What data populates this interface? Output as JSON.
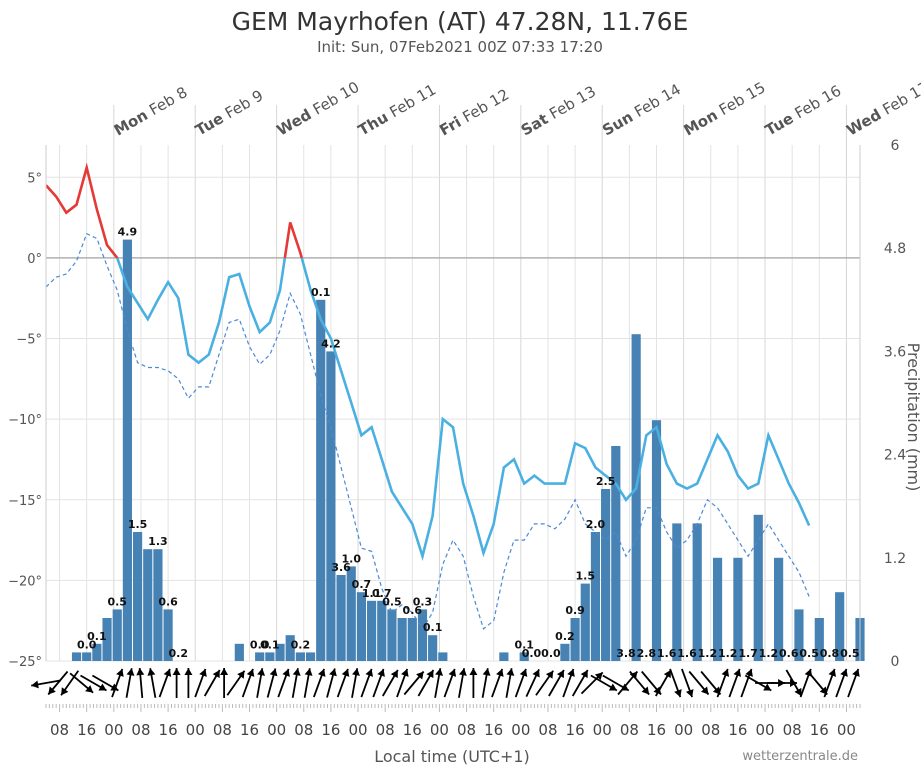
{
  "header": {
    "title": "GEM Mayrhofen (AT) 47.28N, 11.76E",
    "subtitle": "Init: Sun, 07Feb2021 00Z 07:33 17:20"
  },
  "credit": "wetterzentrale.de",
  "colors": {
    "bar": "#4682b4",
    "temp_line": "#4ab0e2",
    "temp_warm": "#e53935",
    "dewpoint": "#4a8ad6",
    "grid": "#e3e3e3",
    "zero_line": "#b0b0b0"
  },
  "chart_data": {
    "type": "bar+line",
    "title": "GEM Mayrhofen (AT) 47.28N, 11.76E",
    "subtitle": "Init: Sun, 07Feb2021 00Z 07:33 17:20",
    "xlabel": "Local time (UTC+1)",
    "ylabel_left": "",
    "ylabel_right": "Precipitation (mm)",
    "time_step_hours": 3,
    "start_hour_local": 4,
    "x_range_hours": [
      4,
      244
    ],
    "y_left": {
      "range": [
        -25,
        7
      ],
      "ticks": [
        5,
        0,
        -5,
        -10,
        -15,
        -20,
        -25
      ],
      "tick_labels": [
        "5°",
        "0°",
        "−5°",
        "−10°",
        "−15°",
        "−20°",
        "−25°"
      ]
    },
    "y_right": {
      "range": [
        0,
        6
      ],
      "ticks": [
        6,
        4.8,
        3.6,
        2.4,
        1.2,
        0
      ],
      "tick_labels": [
        "6",
        "4.8",
        "3.6",
        "2.4",
        "1.2",
        "0"
      ]
    },
    "day_labels": [
      {
        "dow": "Mon",
        "date": "Feb 8",
        "hour": 24
      },
      {
        "dow": "Tue",
        "date": "Feb 9",
        "hour": 48
      },
      {
        "dow": "Wed",
        "date": "Feb 10",
        "hour": 72
      },
      {
        "dow": "Thu",
        "date": "Feb 11",
        "hour": 96
      },
      {
        "dow": "Fri",
        "date": "Feb 12",
        "hour": 120
      },
      {
        "dow": "Sat",
        "date": "Feb 13",
        "hour": 144
      },
      {
        "dow": "Sun",
        "date": "Feb 14",
        "hour": 168
      },
      {
        "dow": "Mon",
        "date": "Feb 15",
        "hour": 192
      },
      {
        "dow": "Tue",
        "date": "Feb 16",
        "hour": 216
      },
      {
        "dow": "Wed",
        "date": "Feb 17",
        "hour": 240
      }
    ],
    "x_tick_labels": [
      "08",
      "16",
      "00",
      "08",
      "16",
      "00",
      "08",
      "16",
      "00",
      "08",
      "16",
      "00",
      "08",
      "16",
      "00",
      "08",
      "16",
      "00",
      "08",
      "16",
      "00",
      "08",
      "16",
      "00",
      "08",
      "16",
      "00",
      "08",
      "16",
      "00"
    ],
    "x_tick_hours": [
      8,
      16,
      24,
      32,
      40,
      48,
      56,
      64,
      72,
      80,
      88,
      96,
      104,
      112,
      120,
      128,
      136,
      144,
      152,
      160,
      168,
      176,
      184,
      192,
      200,
      208,
      216,
      224,
      232,
      240
    ],
    "precip_series": {
      "name": "Precipitation (mm)",
      "times": [
        10,
        13,
        16,
        19,
        22,
        25,
        28,
        31,
        34,
        37,
        40,
        61,
        64,
        67,
        70,
        73,
        76,
        79,
        82,
        85,
        88,
        91,
        94,
        97,
        100,
        103,
        106,
        109,
        112,
        115,
        118,
        121,
        136,
        139,
        145,
        148,
        151,
        154,
        157,
        160,
        163,
        166,
        169,
        172,
        175,
        178,
        181,
        184,
        187,
        190,
        193,
        196,
        199,
        202,
        205,
        208,
        211,
        214,
        217,
        220,
        223,
        226,
        229,
        232,
        235,
        238,
        241,
        244
      ],
      "values": [
        0.0,
        0.1,
        0.1,
        0.2,
        0.5,
        0.6,
        4.9,
        1.5,
        1.3,
        1.3,
        0.6,
        0.2,
        0.0,
        0.1,
        0.1,
        0.2,
        0.3,
        0.1,
        0.1,
        4.2,
        3.6,
        1.0,
        1.1,
        0.8,
        0.7,
        0.7,
        0.6,
        0.5,
        0.5,
        0.6,
        0.3,
        0.1,
        0.0,
        0.1,
        0.1,
        0.0,
        0.0,
        0.0,
        0.2,
        0.5,
        0.9,
        1.5,
        2.0,
        2.5,
        0.0,
        3.8,
        0.0,
        2.8,
        0.0,
        1.6,
        0.0,
        1.6,
        0.0,
        1.2,
        0.0,
        1.2,
        0.0,
        1.7,
        0.0,
        1.2,
        0.0,
        0.6,
        0.0,
        0.5,
        0.0,
        0.8,
        0.0,
        0.5
      ]
    },
    "precip_labels": [
      {
        "hour": 16,
        "text": "0.0"
      },
      {
        "hour": 19,
        "text": "0.1"
      },
      {
        "hour": 25,
        "text": "0.5"
      },
      {
        "hour": 28,
        "text": "4.9"
      },
      {
        "hour": 31,
        "text": "1.5"
      },
      {
        "hour": 37,
        "text": "1.3"
      },
      {
        "hour": 40,
        "text": "0.6"
      },
      {
        "hour": 43,
        "text": "0.2"
      },
      {
        "hour": 67,
        "text": "0.0"
      },
      {
        "hour": 70,
        "text": "0.1"
      },
      {
        "hour": 79,
        "text": "0.2"
      },
      {
        "hour": 85,
        "text": "0.1"
      },
      {
        "hour": 88,
        "text": "4.2"
      },
      {
        "hour": 91,
        "text": "3.6"
      },
      {
        "hour": 94,
        "text": "1.0"
      },
      {
        "hour": 100,
        "text": "1.1"
      },
      {
        "hour": 103,
        "text": "0.7"
      },
      {
        "hour": 97,
        "text": "0.7"
      },
      {
        "hour": 106,
        "text": "0.5"
      },
      {
        "hour": 112,
        "text": "0.6"
      },
      {
        "hour": 115,
        "text": "0.3"
      },
      {
        "hour": 118,
        "text": "0.1"
      },
      {
        "hour": 145,
        "text": "0.1"
      },
      {
        "hour": 150,
        "text": "0.00.0"
      },
      {
        "hour": 157,
        "text": "0.2"
      },
      {
        "hour": 160,
        "text": "0.9"
      },
      {
        "hour": 163,
        "text": "1.5"
      },
      {
        "hour": 166,
        "text": "2.0"
      },
      {
        "hour": 169,
        "text": "2.5"
      },
      {
        "hour": 175,
        "text": "3.8"
      },
      {
        "hour": 181,
        "text": "2.8"
      },
      {
        "hour": 187,
        "text": "1.6"
      },
      {
        "hour": 193,
        "text": "1.6"
      },
      {
        "hour": 199,
        "text": "1.2"
      },
      {
        "hour": 205,
        "text": "1.2"
      },
      {
        "hour": 211,
        "text": "1.7"
      },
      {
        "hour": 217,
        "text": "1.2"
      },
      {
        "hour": 223,
        "text": "0.6"
      },
      {
        "hour": 229,
        "text": "0.5"
      },
      {
        "hour": 235,
        "text": "0.8"
      },
      {
        "hour": 241,
        "text": "0.5"
      }
    ],
    "temperature_series": {
      "name": "Temperature (°C)",
      "points": [
        [
          4,
          4.5
        ],
        [
          7,
          3.8
        ],
        [
          10,
          2.8
        ],
        [
          13,
          3.3
        ],
        [
          16,
          5.6
        ],
        [
          19,
          3.0
        ],
        [
          22,
          0.8
        ],
        [
          25,
          0.0
        ],
        [
          28,
          -1.8
        ],
        [
          31,
          -2.8
        ],
        [
          34,
          -3.8
        ],
        [
          37,
          -2.6
        ],
        [
          40,
          -1.5
        ],
        [
          43,
          -2.5
        ],
        [
          46,
          -6.0
        ],
        [
          49,
          -6.5
        ],
        [
          52,
          -6.0
        ],
        [
          55,
          -4.0
        ],
        [
          58,
          -1.2
        ],
        [
          61,
          -1.0
        ],
        [
          64,
          -3.0
        ],
        [
          67,
          -4.6
        ],
        [
          70,
          -4.0
        ],
        [
          73,
          -2.0
        ],
        [
          76,
          2.2
        ],
        [
          79,
          0.3
        ],
        [
          82,
          -2.0
        ],
        [
          85,
          -3.8
        ],
        [
          88,
          -5.0
        ],
        [
          91,
          -7.0
        ],
        [
          94,
          -9.0
        ],
        [
          97,
          -11.0
        ],
        [
          100,
          -10.5
        ],
        [
          103,
          -12.5
        ],
        [
          106,
          -14.5
        ],
        [
          109,
          -15.5
        ],
        [
          112,
          -16.5
        ],
        [
          115,
          -18.5
        ],
        [
          118,
          -16.0
        ],
        [
          121,
          -10.0
        ],
        [
          124,
          -10.5
        ],
        [
          127,
          -14.0
        ],
        [
          130,
          -16.0
        ],
        [
          133,
          -18.3
        ],
        [
          136,
          -16.5
        ],
        [
          139,
          -13.0
        ],
        [
          142,
          -12.5
        ],
        [
          145,
          -14.0
        ],
        [
          148,
          -13.5
        ],
        [
          151,
          -14.0
        ],
        [
          154,
          -14.0
        ],
        [
          157,
          -14.0
        ],
        [
          160,
          -11.5
        ],
        [
          163,
          -11.8
        ],
        [
          166,
          -13.0
        ],
        [
          169,
          -13.5
        ],
        [
          172,
          -14.0
        ],
        [
          175,
          -15.0
        ],
        [
          178,
          -14.3
        ],
        [
          181,
          -11.0
        ],
        [
          184,
          -10.5
        ],
        [
          187,
          -12.8
        ],
        [
          190,
          -14.0
        ],
        [
          193,
          -14.3
        ],
        [
          196,
          -14.0
        ],
        [
          199,
          -12.5
        ],
        [
          202,
          -11.0
        ],
        [
          205,
          -12.0
        ],
        [
          208,
          -13.5
        ],
        [
          211,
          -14.3
        ],
        [
          214,
          -14.0
        ],
        [
          217,
          -11.0
        ],
        [
          220,
          -12.5
        ],
        [
          223,
          -14.0
        ],
        [
          226,
          -15.2
        ],
        [
          229,
          -16.6
        ]
      ]
    },
    "dewpoint_series": {
      "name": "Dew point (°C)",
      "points": [
        [
          4,
          -1.8
        ],
        [
          7,
          -1.2
        ],
        [
          10,
          -1.0
        ],
        [
          13,
          -0.2
        ],
        [
          16,
          1.5
        ],
        [
          19,
          1.2
        ],
        [
          22,
          -0.5
        ],
        [
          25,
          -2.0
        ],
        [
          28,
          -4.5
        ],
        [
          31,
          -6.5
        ],
        [
          34,
          -6.8
        ],
        [
          37,
          -6.8
        ],
        [
          40,
          -7.0
        ],
        [
          43,
          -7.5
        ],
        [
          46,
          -8.7
        ],
        [
          49,
          -8.0
        ],
        [
          52,
          -8.0
        ],
        [
          55,
          -6.0
        ],
        [
          58,
          -4.0
        ],
        [
          61,
          -3.8
        ],
        [
          64,
          -5.5
        ],
        [
          67,
          -6.6
        ],
        [
          70,
          -6.0
        ],
        [
          73,
          -4.5
        ],
        [
          76,
          -2.2
        ],
        [
          79,
          -3.5
        ],
        [
          82,
          -6.0
        ],
        [
          85,
          -8.5
        ],
        [
          88,
          -10.5
        ],
        [
          91,
          -13.0
        ],
        [
          94,
          -15.5
        ],
        [
          97,
          -18.0
        ],
        [
          100,
          -18.2
        ],
        [
          103,
          -20.5
        ],
        [
          106,
          -22.0
        ],
        [
          109,
          -21.5
        ],
        [
          112,
          -22.0
        ],
        [
          115,
          -23.0
        ],
        [
          118,
          -22.0
        ],
        [
          121,
          -19.0
        ],
        [
          124,
          -17.5
        ],
        [
          127,
          -18.5
        ],
        [
          130,
          -21.0
        ],
        [
          133,
          -23.0
        ],
        [
          136,
          -22.5
        ],
        [
          139,
          -19.5
        ],
        [
          142,
          -17.5
        ],
        [
          145,
          -17.5
        ],
        [
          148,
          -16.5
        ],
        [
          151,
          -16.5
        ],
        [
          154,
          -16.8
        ],
        [
          157,
          -16.2
        ],
        [
          160,
          -15.0
        ],
        [
          163,
          -16.5
        ],
        [
          166,
          -17.0
        ],
        [
          169,
          -17.5
        ],
        [
          172,
          -17.0
        ],
        [
          175,
          -18.5
        ],
        [
          178,
          -17.5
        ],
        [
          181,
          -15.5
        ],
        [
          184,
          -15.5
        ],
        [
          187,
          -17.0
        ],
        [
          190,
          -18.0
        ],
        [
          193,
          -17.5
        ],
        [
          196,
          -16.5
        ],
        [
          199,
          -15.0
        ],
        [
          202,
          -15.5
        ],
        [
          205,
          -16.5
        ],
        [
          208,
          -17.5
        ],
        [
          211,
          -18.5
        ],
        [
          214,
          -17.5
        ],
        [
          217,
          -16.5
        ],
        [
          220,
          -17.5
        ],
        [
          223,
          -18.5
        ],
        [
          226,
          -19.5
        ],
        [
          229,
          -21.0
        ]
      ]
    },
    "wind_directions_deg": [
      80,
      40,
      35,
      310,
      300,
      300,
      200,
      190,
      175,
      170,
      200,
      180,
      180,
      200,
      210,
      180,
      215,
      200,
      190,
      195,
      200,
      190,
      190,
      200,
      195,
      200,
      190,
      200,
      200,
      210,
      200,
      220,
      210,
      190,
      200,
      190,
      180,
      190,
      200,
      190,
      200,
      205,
      215,
      210,
      200,
      210,
      225,
      300,
      300,
      220,
      320,
      320,
      210,
      340,
      340,
      320,
      320,
      200,
      200,
      200,
      300,
      270,
      270,
      330,
      200,
      320,
      200,
      200,
      200
    ]
  }
}
